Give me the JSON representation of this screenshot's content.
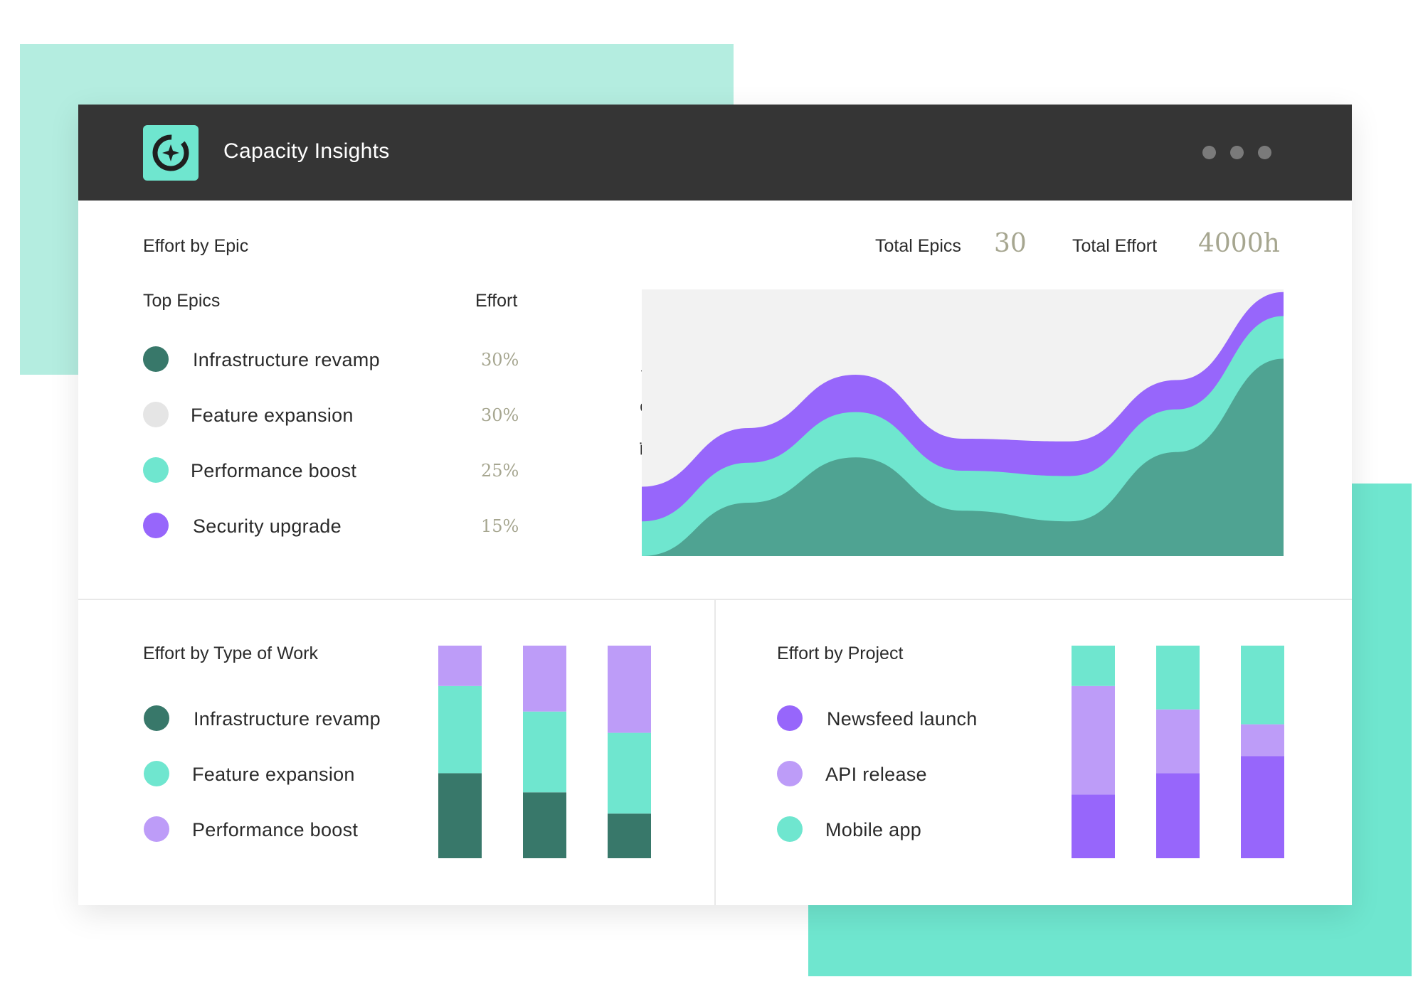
{
  "app": {
    "title": "Capacity Insights",
    "logo_icon": "compass-star-icon",
    "menu_icon": "more-dots-icon"
  },
  "colors": {
    "dark_green": "#38786a",
    "area_green": "#4fa392",
    "light_gray": "#e5e5e5",
    "mint": "#6fe6cf",
    "purple": "#9766fb",
    "light_purple": "#bd9cf8",
    "header_bg": "#353535",
    "stat_value": "#a6a690"
  },
  "epic_section": {
    "title": "Effort by Epic",
    "total_epics_label": "Total Epics",
    "total_epics_value": "30",
    "total_effort_label": "Total Effort",
    "total_effort_value": "4000h",
    "col_top_epics": "Top Epics",
    "col_effort": "Effort",
    "items": [
      {
        "label": "Infrastructure revamp",
        "effort": "30%",
        "color": "#38786a"
      },
      {
        "label": "Feature expansion",
        "effort": "30%",
        "color": "#e5e5e5"
      },
      {
        "label": "Performance boost",
        "effort": "25%",
        "color": "#6fe6cf"
      },
      {
        "label": "Security upgrade",
        "effort": "15%",
        "color": "#9766fb"
      }
    ]
  },
  "type_section": {
    "title": "Effort by Type of Work",
    "items": [
      {
        "label": "Infrastructure revamp",
        "color": "#38786a"
      },
      {
        "label": "Feature expansion",
        "color": "#6fe6cf"
      },
      {
        "label": "Performance boost",
        "color": "#bd9cf8"
      }
    ]
  },
  "project_section": {
    "title": "Effort by Project",
    "items": [
      {
        "label": "Newsfeed launch",
        "color": "#9766fb"
      },
      {
        "label": "API release",
        "color": "#bd9cf8"
      },
      {
        "label": "Mobile app",
        "color": "#6fe6cf"
      }
    ]
  },
  "chart_data": [
    {
      "type": "area",
      "ylabel": "Time Spent",
      "stacked": true,
      "grid": false,
      "x": [
        0,
        1,
        2,
        3,
        4,
        5,
        6
      ],
      "series": [
        {
          "color": "#4fa392",
          "values": [
            0,
            20,
            37,
            17,
            13,
            39,
            74
          ]
        },
        {
          "color": "#6fe6cf",
          "values": [
            13,
            15,
            17,
            15,
            17,
            16,
            16
          ]
        },
        {
          "color": "#9766fb",
          "values": [
            13,
            13,
            14,
            12,
            13,
            11,
            9
          ]
        }
      ],
      "ylim": [
        0,
        100
      ]
    },
    {
      "type": "bar",
      "stacked": true,
      "categories": [
        "",
        "",
        ""
      ],
      "series": [
        {
          "name": "Infrastructure revamp",
          "color": "#38786a",
          "values": [
            40,
            31,
            21
          ]
        },
        {
          "name": "Feature expansion",
          "color": "#6fe6cf",
          "values": [
            41,
            38,
            38
          ]
        },
        {
          "name": "Performance boost",
          "color": "#bd9cf8",
          "values": [
            19,
            31,
            41
          ]
        }
      ],
      "ylim": [
        0,
        100
      ]
    },
    {
      "type": "bar",
      "stacked": true,
      "categories": [
        "",
        "",
        ""
      ],
      "series": [
        {
          "name": "Newsfeed launch",
          "color": "#9766fb",
          "values": [
            30,
            40,
            48
          ]
        },
        {
          "name": "API release",
          "color": "#bd9cf8",
          "values": [
            51,
            30,
            15
          ]
        },
        {
          "name": "Mobile app",
          "color": "#6fe6cf",
          "values": [
            19,
            30,
            37
          ]
        }
      ],
      "ylim": [
        0,
        100
      ]
    }
  ]
}
